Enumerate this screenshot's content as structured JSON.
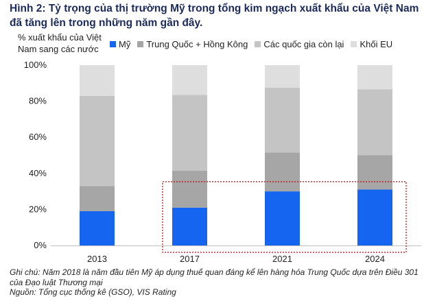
{
  "title": "Hình 2: Tỷ trọng của thị trường Mỹ trong tổng kim ngạch xuất khẩu của Việt Nam đã tăng lên trong những năm gần đây.",
  "notes": {
    "note": "Ghi chú: Năm 2018 là năm đầu tiên Mỹ áp dụng thuế quan đáng kể lên hàng hóa Trung Quốc dựa trên Điều 301 của Đạo luật Thương mại",
    "source": "Nguồn: Tổng cục thống kê (GSO), VIS Rating"
  },
  "colors": {
    "us": "#1565f0",
    "china_hk": "#a6a6a6",
    "others": "#c4c4c4",
    "eu": "#dedede",
    "highlight": "#c00000"
  },
  "chart_data": {
    "type": "bar",
    "stacked": true,
    "title": "",
    "ylabel": "% xuất khẩu của Việt Nam sang các nước",
    "xlabel": "",
    "categories": [
      "2013",
      "2017",
      "2021",
      "2024"
    ],
    "series": [
      {
        "name": "Mỹ",
        "values": [
          19,
          21,
          30,
          31
        ]
      },
      {
        "name": "Trung Quốc + Hồng Kông",
        "values": [
          14,
          20.5,
          21.5,
          19
        ]
      },
      {
        "name": "Các quốc gia còn lại",
        "values": [
          50,
          42,
          36,
          36.5
        ]
      },
      {
        "name": "Khối EU",
        "values": [
          17,
          16.5,
          12.5,
          13.5
        ]
      }
    ],
    "ylim": [
      0,
      100
    ],
    "yticks": [
      "0%",
      "20%",
      "40%",
      "60%",
      "80%",
      "100%"
    ],
    "grid": false,
    "legend": "top",
    "highlight_categories": [
      "2017",
      "2021",
      "2024"
    ]
  }
}
